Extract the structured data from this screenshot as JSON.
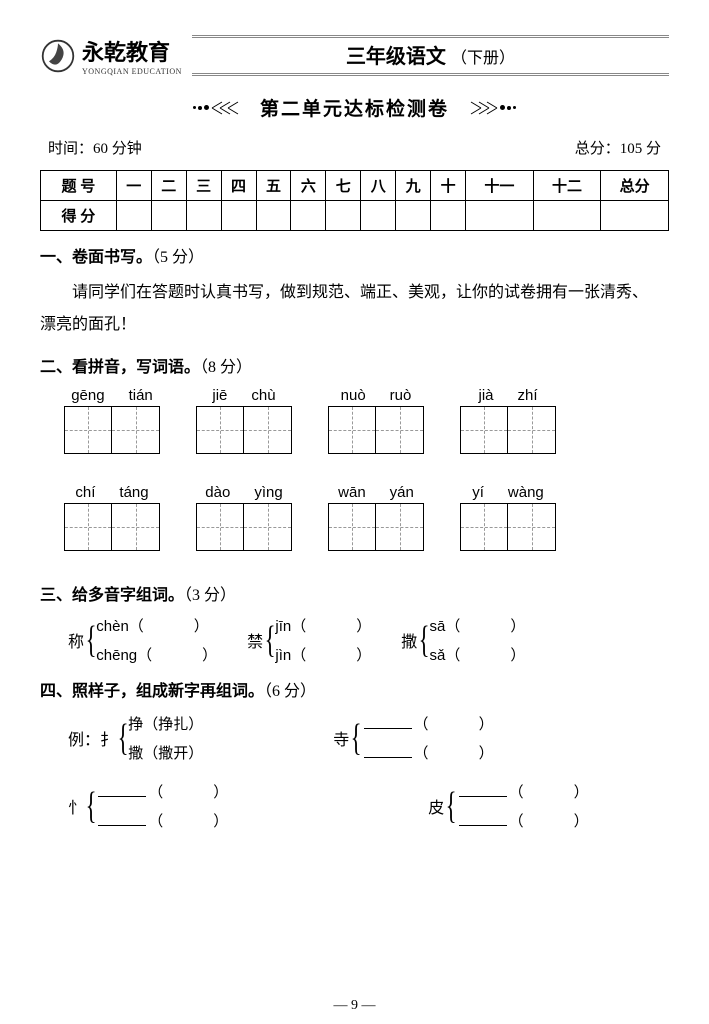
{
  "brand": {
    "name": "永乾教育",
    "sub": "YONGQIAN EDUCATION"
  },
  "header_title": {
    "main": "三年级语文",
    "vol": "（下册）"
  },
  "unit_title": "第二单元达标检测卷",
  "time": {
    "label": "时间：",
    "value": "60 分钟"
  },
  "total": {
    "label": "总分：",
    "value": "105 分"
  },
  "score_table": {
    "r1": [
      "题 号",
      "一",
      "二",
      "三",
      "四",
      "五",
      "六",
      "七",
      "八",
      "九",
      "十",
      "十一",
      "十二",
      "总分"
    ],
    "r2_label": "得 分"
  },
  "s1": {
    "title": "一、卷面书写。",
    "pts": "（5 分）",
    "line1": "请同学们在答题时认真书写，做到规范、端正、美观，让你的试卷拥有一张清秀、",
    "line2": "漂亮的面孔！"
  },
  "s2": {
    "title": "二、看拼音，写词语。",
    "pts": "（8 分）",
    "row1": [
      [
        "gēng",
        "tián"
      ],
      [
        "jiē",
        "chù"
      ],
      [
        "nuò",
        "ruò"
      ],
      [
        "jià",
        "zhí"
      ]
    ],
    "row2": [
      [
        "chí",
        "táng"
      ],
      [
        "dào",
        "yìng"
      ],
      [
        "wān",
        "yán"
      ],
      [
        "yí",
        "wàng"
      ]
    ]
  },
  "s3": {
    "title": "三、给多音字组词。",
    "pts": "（3 分）",
    "groups": [
      {
        "han": "称",
        "a": "chèn",
        "b": "chēng"
      },
      {
        "han": "禁",
        "a": "jīn",
        "b": "jìn"
      },
      {
        "han": "撒",
        "a": "sā",
        "b": "sǎ"
      }
    ]
  },
  "s4": {
    "title": "四、照样子，组成新字再组词。",
    "pts": "（6 分）",
    "ex": {
      "prefix": "例：扌",
      "a": "挣（挣扎）",
      "b": "撒（撒开）"
    },
    "g1": "寺",
    "g2": "忄",
    "g3": "皮"
  },
  "page_num": "— 9 —"
}
